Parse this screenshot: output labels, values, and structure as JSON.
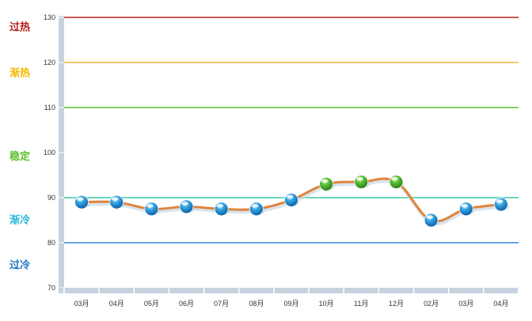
{
  "chart_data": {
    "type": "line",
    "categories": [
      "03月",
      "04月",
      "05月",
      "06月",
      "07月",
      "08月",
      "09月",
      "10月",
      "11月",
      "12月",
      "02月",
      "03月",
      "04月"
    ],
    "series": [
      {
        "values": [
          89,
          89,
          87.5,
          88,
          87.5,
          87.5,
          89.5,
          93,
          93.5,
          93.5,
          85,
          87.5,
          88.5
        ]
      }
    ],
    "point_colors": [
      "blue",
      "blue",
      "blue",
      "blue",
      "blue",
      "blue",
      "blue",
      "green",
      "green",
      "green",
      "blue",
      "blue",
      "blue"
    ],
    "yticks": [
      70,
      80,
      90,
      100,
      110,
      120,
      130
    ],
    "ylim": [
      70,
      130
    ],
    "grid": false,
    "reference_lines": [
      {
        "value": 130,
        "color": "#b22222"
      },
      {
        "value": 120,
        "color": "#f2b33d"
      },
      {
        "value": 110,
        "color": "#54c42c"
      },
      {
        "value": 90,
        "color": "#3cc7a8"
      },
      {
        "value": 80,
        "color": "#3a86d8"
      }
    ],
    "zones": [
      {
        "label": "过热",
        "color": "#b71c1c",
        "anchor": 128
      },
      {
        "label": "渐热",
        "color": "#f5b800",
        "anchor": 117.8
      },
      {
        "label": "稳定",
        "color": "#5cbf2a",
        "anchor": 99.3
      },
      {
        "label": "渐冷",
        "color": "#25b6d9",
        "anchor": 85.2
      },
      {
        "label": "过冷",
        "color": "#1b75c4",
        "anchor": 75.2
      }
    ],
    "line_color": "#e0843a",
    "axis_color": "#c5d3e0"
  }
}
